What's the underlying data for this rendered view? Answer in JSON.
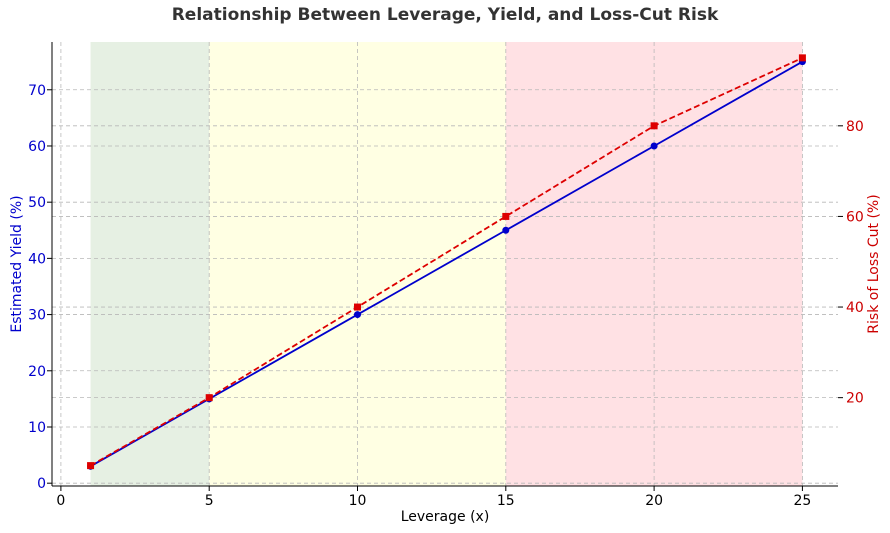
{
  "chart_data": {
    "type": "line",
    "title": "Relationship Between Leverage, Yield, and Loss-Cut Risk",
    "xlabel": "Leverage (x)",
    "ylabel_left": "Estimated Yield (%)",
    "ylabel_right": "Risk of Loss Cut (%)",
    "x": [
      1,
      5,
      10,
      15,
      20,
      25
    ],
    "xlim": [
      -0.3,
      26.2
    ],
    "ylim_left": [
      -0.5,
      78.5
    ],
    "ylim_right": [
      0.5,
      98.5
    ],
    "x_ticks": [
      0,
      5,
      10,
      15,
      20,
      25
    ],
    "y_left_ticks": [
      0,
      10,
      20,
      30,
      40,
      50,
      60,
      70
    ],
    "y_right_ticks": [
      20,
      40,
      60,
      80
    ],
    "grid": true,
    "series": [
      {
        "axis": "left",
        "color": "#0000cc",
        "style": "solid",
        "marker": "circle",
        "values": [
          3,
          15,
          30,
          45,
          60,
          75
        ]
      },
      {
        "axis": "right",
        "color": "#dd0000",
        "style": "dashed",
        "marker": "square",
        "values": [
          5,
          20,
          40,
          60,
          80,
          95
        ]
      }
    ],
    "regions": [
      {
        "x0": 1,
        "x1": 5,
        "color": "#e6f0e3"
      },
      {
        "x0": 5,
        "x1": 15,
        "color": "#ffffe3"
      },
      {
        "x0": 15,
        "x1": 25,
        "color": "#ffe1e4"
      }
    ]
  }
}
